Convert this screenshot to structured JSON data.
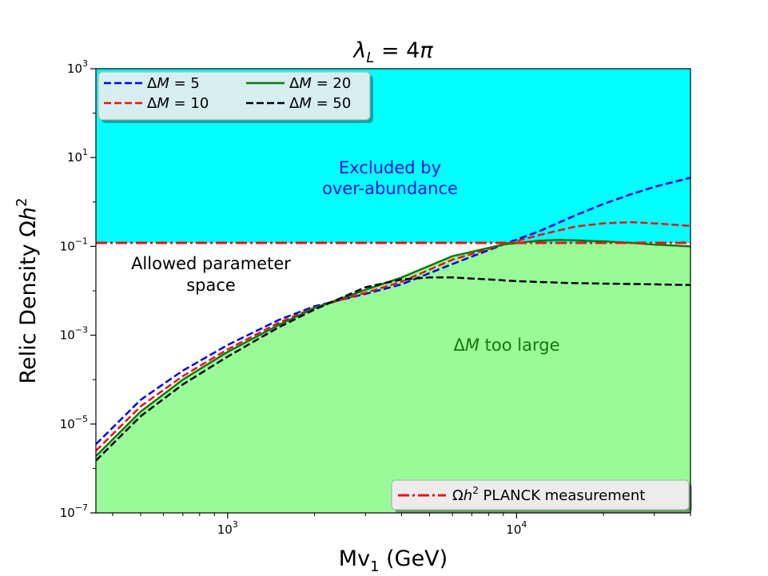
{
  "chart_data": {
    "type": "line",
    "title": "λL = 4π",
    "xlabel": "Mv1 (GeV)",
    "ylabel": "Relic Density Ωh2",
    "xscale": "log",
    "yscale": "log",
    "xlim": [
      350,
      40000
    ],
    "ylim": [
      1e-07,
      1000
    ],
    "x_ticks": [
      {
        "value": 1000,
        "base": "10",
        "exp": "3"
      },
      {
        "value": 10000,
        "base": "10",
        "exp": "4"
      }
    ],
    "y_ticks": [
      {
        "value": 1e-07,
        "base": "10",
        "exp": "−7"
      },
      {
        "value": 1e-05,
        "base": "10",
        "exp": "−5"
      },
      {
        "value": 0.001,
        "base": "10",
        "exp": "−3"
      },
      {
        "value": 0.1,
        "base": "10",
        "exp": "−1"
      },
      {
        "value": 10,
        "base": "10",
        "exp": "1"
      },
      {
        "value": 1000,
        "base": "10",
        "exp": "3"
      }
    ],
    "planck_value": 0.12,
    "series": [
      {
        "name": "ΔM = 5",
        "color": "#0000ee",
        "dash": "dashed",
        "x": [
          350,
          500,
          700,
          1000,
          1500,
          2000,
          3000,
          4000,
          6000,
          9000,
          12000,
          16000,
          20000,
          25000,
          30000,
          40000
        ],
        "y": [
          3.5e-06,
          3.5e-05,
          0.00016,
          0.0006,
          0.0022,
          0.0045,
          0.0085,
          0.014,
          0.04,
          0.11,
          0.22,
          0.5,
          0.9,
          1.5,
          2.2,
          3.5
        ]
      },
      {
        "name": "ΔM = 10",
        "color": "#ee1111",
        "dash": "dashed",
        "x": [
          350,
          500,
          700,
          1000,
          1500,
          2000,
          3000,
          4000,
          6000,
          9000,
          12000,
          16000,
          20000,
          25000,
          30000,
          40000
        ],
        "y": [
          2.5e-06,
          2.5e-05,
          0.00012,
          0.00048,
          0.0019,
          0.0042,
          0.009,
          0.016,
          0.05,
          0.11,
          0.18,
          0.28,
          0.33,
          0.35,
          0.33,
          0.29
        ]
      },
      {
        "name": "ΔM = 20",
        "color": "#117711",
        "dash": "solid",
        "x": [
          350,
          500,
          700,
          1000,
          1500,
          2000,
          3000,
          4000,
          6000,
          9000,
          12000,
          14000,
          16000,
          20000,
          25000,
          30000,
          40000
        ],
        "y": [
          1.9e-06,
          1.9e-05,
          0.0001,
          0.00042,
          0.0017,
          0.0041,
          0.0105,
          0.02,
          0.06,
          0.11,
          0.135,
          0.14,
          0.137,
          0.13,
          0.12,
          0.11,
          0.1
        ]
      },
      {
        "name": "ΔM = 50",
        "color": "#000000",
        "dash": "dashed",
        "x": [
          350,
          500,
          700,
          1000,
          1500,
          2000,
          3000,
          4000,
          5000,
          6000,
          8000,
          10000,
          15000,
          20000,
          30000,
          40000
        ],
        "y": [
          1.5e-06,
          1.5e-05,
          7.8e-05,
          0.00033,
          0.0015,
          0.0038,
          0.012,
          0.018,
          0.02,
          0.02,
          0.018,
          0.0165,
          0.015,
          0.0145,
          0.014,
          0.0135
        ]
      }
    ],
    "shaded_regions": [
      {
        "label_lines": [
          "Excluded by",
          "over-abundance"
        ],
        "color": "#00ffff",
        "text_color": "#1010ee"
      },
      {
        "label_lines": [
          "ΔM too large"
        ],
        "color": "#98fb98",
        "text_color": "#117711"
      }
    ],
    "annotations": [
      {
        "label_lines": [
          "Allowed parameter",
          "space"
        ],
        "text_color": "#000000"
      }
    ],
    "legend": {
      "position": "top-left",
      "columns": 2
    },
    "planck_legend": {
      "label": "Ωh2 PLANCK measurement",
      "position": "bottom-right",
      "color": "#ee1111"
    }
  }
}
